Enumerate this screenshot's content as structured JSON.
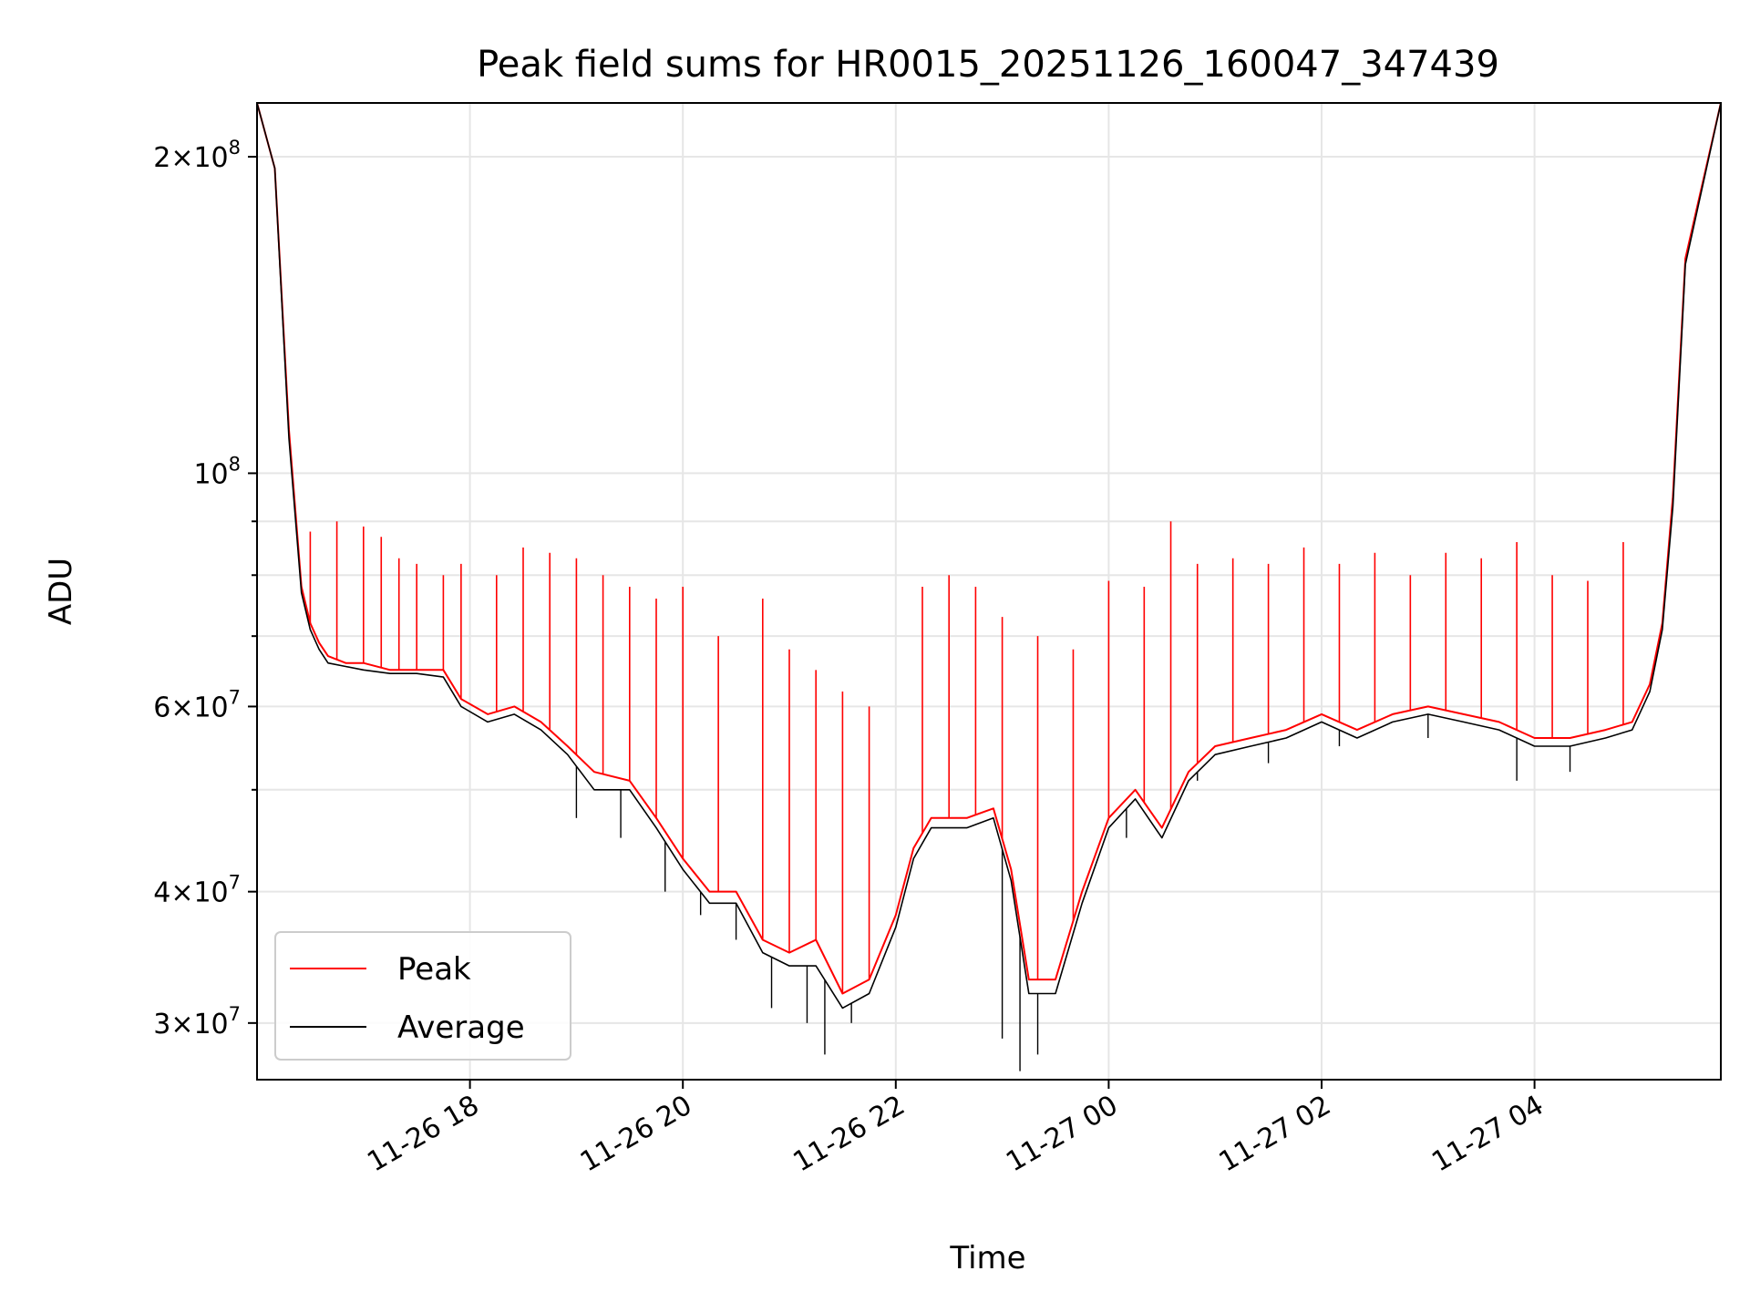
{
  "chart_data": {
    "type": "line",
    "title": "Peak field sums for HR0015_20251126_160047_347439",
    "xlabel": "Time",
    "ylabel": "ADU",
    "yscale": "log",
    "ylim": [
      26500000,
      225000000
    ],
    "xlim": [
      "2025-11-26 16:00",
      "2025-11-27 05:45"
    ],
    "grid": true,
    "legend": "lower-left",
    "x_ticks": [
      {
        "value": "2025-11-26 18:00",
        "label": "11-26 18"
      },
      {
        "value": "2025-11-26 20:00",
        "label": "11-26 20"
      },
      {
        "value": "2025-11-26 22:00",
        "label": "11-26 22"
      },
      {
        "value": "2025-11-27 00:00",
        "label": "11-27 00"
      },
      {
        "value": "2025-11-27 02:00",
        "label": "11-27 02"
      },
      {
        "value": "2025-11-27 04:00",
        "label": "11-27 04"
      }
    ],
    "y_ticks": [
      {
        "value": 30000000,
        "mant": "3",
        "exp": "7"
      },
      {
        "value": 40000000,
        "mant": "4",
        "exp": "7"
      },
      {
        "value": 60000000,
        "mant": "6",
        "exp": "7"
      },
      {
        "value": 100000000,
        "mant": "",
        "exp": "8"
      },
      {
        "value": 200000000,
        "mant": "2",
        "exp": "8"
      }
    ],
    "series": [
      {
        "name": "Peak",
        "color": "#ff0000",
        "x": [
          "2025-11-26 16:00",
          "2025-11-26 16:10",
          "2025-11-26 16:18",
          "2025-11-26 16:25",
          "2025-11-26 16:30",
          "2025-11-26 16:35",
          "2025-11-26 16:40",
          "2025-11-26 16:50",
          "2025-11-26 17:00",
          "2025-11-26 17:15",
          "2025-11-26 17:30",
          "2025-11-26 17:45",
          "2025-11-26 17:55",
          "2025-11-26 18:10",
          "2025-11-26 18:25",
          "2025-11-26 18:40",
          "2025-11-26 18:55",
          "2025-11-26 19:10",
          "2025-11-26 19:30",
          "2025-11-26 19:45",
          "2025-11-26 20:00",
          "2025-11-26 20:15",
          "2025-11-26 20:30",
          "2025-11-26 20:45",
          "2025-11-26 21:00",
          "2025-11-26 21:15",
          "2025-11-26 21:30",
          "2025-11-26 21:45",
          "2025-11-26 22:00",
          "2025-11-26 22:10",
          "2025-11-26 22:20",
          "2025-11-26 22:40",
          "2025-11-26 22:55",
          "2025-11-26 23:05",
          "2025-11-26 23:15",
          "2025-11-26 23:30",
          "2025-11-26 23:45",
          "2025-11-27 00:00",
          "2025-11-27 00:15",
          "2025-11-27 00:30",
          "2025-11-27 00:45",
          "2025-11-27 01:00",
          "2025-11-27 01:20",
          "2025-11-27 01:40",
          "2025-11-27 02:00",
          "2025-11-27 02:20",
          "2025-11-27 02:40",
          "2025-11-27 03:00",
          "2025-11-27 03:20",
          "2025-11-27 03:40",
          "2025-11-27 04:00",
          "2025-11-27 04:20",
          "2025-11-27 04:40",
          "2025-11-27 04:55",
          "2025-11-27 05:05",
          "2025-11-27 05:12",
          "2025-11-27 05:18",
          "2025-11-27 05:25",
          "2025-11-27 05:45"
        ],
        "values": [
          225000000,
          195000000,
          110000000,
          78000000,
          72000000,
          69000000,
          67000000,
          66000000,
          66000000,
          65000000,
          65000000,
          65000000,
          61000000,
          59000000,
          60000000,
          58000000,
          55000000,
          52000000,
          51000000,
          47000000,
          43000000,
          40000000,
          40000000,
          36000000,
          35000000,
          36000000,
          32000000,
          33000000,
          38000000,
          44000000,
          47000000,
          47000000,
          48000000,
          42000000,
          33000000,
          33000000,
          40000000,
          47000000,
          50000000,
          46000000,
          52000000,
          55000000,
          56000000,
          57000000,
          59000000,
          57000000,
          59000000,
          60000000,
          59000000,
          58000000,
          56000000,
          56000000,
          57000000,
          58000000,
          63000000,
          72000000,
          95000000,
          160000000,
          225000000
        ],
        "spikes": [
          [
            "2025-11-26 16:30",
            88000000
          ],
          [
            "2025-11-26 16:45",
            90000000
          ],
          [
            "2025-11-26 17:00",
            89000000
          ],
          [
            "2025-11-26 17:10",
            87000000
          ],
          [
            "2025-11-26 17:20",
            83000000
          ],
          [
            "2025-11-26 17:30",
            82000000
          ],
          [
            "2025-11-26 17:45",
            80000000
          ],
          [
            "2025-11-26 17:55",
            82000000
          ],
          [
            "2025-11-26 18:15",
            80000000
          ],
          [
            "2025-11-26 18:30",
            85000000
          ],
          [
            "2025-11-26 18:45",
            84000000
          ],
          [
            "2025-11-26 19:00",
            83000000
          ],
          [
            "2025-11-26 19:15",
            80000000
          ],
          [
            "2025-11-26 19:30",
            78000000
          ],
          [
            "2025-11-26 19:45",
            76000000
          ],
          [
            "2025-11-26 20:00",
            78000000
          ],
          [
            "2025-11-26 20:20",
            70000000
          ],
          [
            "2025-11-26 20:45",
            76000000
          ],
          [
            "2025-11-26 21:00",
            68000000
          ],
          [
            "2025-11-26 21:15",
            65000000
          ],
          [
            "2025-11-26 21:30",
            62000000
          ],
          [
            "2025-11-26 21:45",
            60000000
          ],
          [
            "2025-11-26 22:15",
            78000000
          ],
          [
            "2025-11-26 22:30",
            80000000
          ],
          [
            "2025-11-26 22:45",
            78000000
          ],
          [
            "2025-11-26 23:00",
            73000000
          ],
          [
            "2025-11-26 23:20",
            70000000
          ],
          [
            "2025-11-26 23:40",
            68000000
          ],
          [
            "2025-11-27 00:00",
            79000000
          ],
          [
            "2025-11-27 00:20",
            78000000
          ],
          [
            "2025-11-27 00:35",
            90000000
          ],
          [
            "2025-11-27 00:50",
            82000000
          ],
          [
            "2025-11-27 01:10",
            83000000
          ],
          [
            "2025-11-27 01:30",
            82000000
          ],
          [
            "2025-11-27 01:50",
            85000000
          ],
          [
            "2025-11-27 02:10",
            82000000
          ],
          [
            "2025-11-27 02:30",
            84000000
          ],
          [
            "2025-11-27 02:50",
            80000000
          ],
          [
            "2025-11-27 03:10",
            84000000
          ],
          [
            "2025-11-27 03:30",
            83000000
          ],
          [
            "2025-11-27 03:50",
            86000000
          ],
          [
            "2025-11-27 04:10",
            80000000
          ],
          [
            "2025-11-27 04:30",
            79000000
          ],
          [
            "2025-11-27 04:50",
            86000000
          ]
        ]
      },
      {
        "name": "Average",
        "color": "#000000",
        "x": [
          "2025-11-26 16:00",
          "2025-11-26 16:10",
          "2025-11-26 16:18",
          "2025-11-26 16:25",
          "2025-11-26 16:30",
          "2025-11-26 16:35",
          "2025-11-26 16:40",
          "2025-11-26 16:50",
          "2025-11-26 17:00",
          "2025-11-26 17:15",
          "2025-11-26 17:30",
          "2025-11-26 17:45",
          "2025-11-26 17:55",
          "2025-11-26 18:10",
          "2025-11-26 18:25",
          "2025-11-26 18:40",
          "2025-11-26 18:55",
          "2025-11-26 19:10",
          "2025-11-26 19:30",
          "2025-11-26 19:45",
          "2025-11-26 20:00",
          "2025-11-26 20:15",
          "2025-11-26 20:30",
          "2025-11-26 20:45",
          "2025-11-26 21:00",
          "2025-11-26 21:15",
          "2025-11-26 21:30",
          "2025-11-26 21:45",
          "2025-11-26 22:00",
          "2025-11-26 22:10",
          "2025-11-26 22:20",
          "2025-11-26 22:40",
          "2025-11-26 22:55",
          "2025-11-26 23:05",
          "2025-11-26 23:15",
          "2025-11-26 23:30",
          "2025-11-26 23:45",
          "2025-11-27 00:00",
          "2025-11-27 00:15",
          "2025-11-27 00:30",
          "2025-11-27 00:45",
          "2025-11-27 01:00",
          "2025-11-27 01:20",
          "2025-11-27 01:40",
          "2025-11-27 02:00",
          "2025-11-27 02:20",
          "2025-11-27 02:40",
          "2025-11-27 03:00",
          "2025-11-27 03:20",
          "2025-11-27 03:40",
          "2025-11-27 04:00",
          "2025-11-27 04:20",
          "2025-11-27 04:40",
          "2025-11-27 04:55",
          "2025-11-27 05:05",
          "2025-11-27 05:12",
          "2025-11-27 05:18",
          "2025-11-27 05:25",
          "2025-11-27 05:45"
        ],
        "values": [
          225000000,
          195000000,
          108000000,
          77000000,
          71000000,
          68000000,
          66000000,
          65500000,
          65000000,
          64500000,
          64500000,
          64000000,
          60000000,
          58000000,
          59000000,
          57000000,
          54000000,
          50000000,
          50000000,
          46000000,
          42000000,
          39000000,
          39000000,
          35000000,
          34000000,
          34000000,
          31000000,
          32000000,
          37000000,
          43000000,
          46000000,
          46000000,
          47000000,
          41000000,
          32000000,
          32000000,
          39000000,
          46000000,
          49000000,
          45000000,
          51000000,
          54000000,
          55000000,
          56000000,
          58000000,
          56000000,
          58000000,
          59000000,
          58000000,
          57000000,
          55000000,
          55000000,
          56000000,
          57000000,
          62000000,
          71000000,
          93000000,
          158000000,
          225000000
        ],
        "dips": [
          [
            "2025-11-26 19:00",
            47000000
          ],
          [
            "2025-11-26 19:25",
            45000000
          ],
          [
            "2025-11-26 19:50",
            40000000
          ],
          [
            "2025-11-26 20:10",
            38000000
          ],
          [
            "2025-11-26 20:30",
            36000000
          ],
          [
            "2025-11-26 20:50",
            31000000
          ],
          [
            "2025-11-26 21:10",
            30000000
          ],
          [
            "2025-11-26 21:20",
            28000000
          ],
          [
            "2025-11-26 21:35",
            30000000
          ],
          [
            "2025-11-26 23:00",
            29000000
          ],
          [
            "2025-11-26 23:10",
            27000000
          ],
          [
            "2025-11-26 23:20",
            28000000
          ],
          [
            "2025-11-27 00:10",
            45000000
          ],
          [
            "2025-11-27 00:50",
            51000000
          ],
          [
            "2025-11-27 01:30",
            53000000
          ],
          [
            "2025-11-27 02:10",
            55000000
          ],
          [
            "2025-11-27 03:00",
            56000000
          ],
          [
            "2025-11-27 03:50",
            51000000
          ],
          [
            "2025-11-27 04:20",
            52000000
          ]
        ]
      }
    ]
  }
}
